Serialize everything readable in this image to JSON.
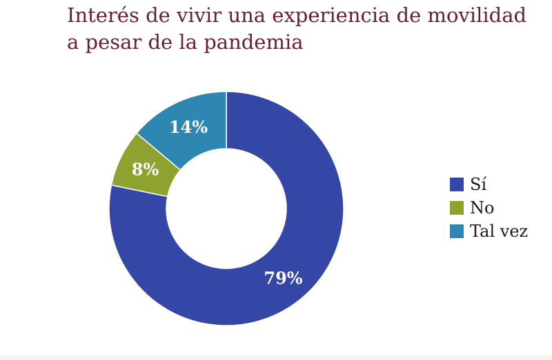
{
  "chart_data": {
    "type": "pie",
    "variant": "donut",
    "title": "Interés de vivir una experiencia de movilidad a pesar de la pandemia",
    "categories": [
      "Sí",
      "No",
      "Tal vez"
    ],
    "values": [
      79,
      8,
      14
    ],
    "data_labels": [
      "79%",
      "8%",
      "14%"
    ],
    "colors": [
      "#3446a6",
      "#8ea22f",
      "#2e87b0"
    ],
    "legend_position": "right"
  },
  "colors": {
    "title": "#6a1f2b",
    "label_text": "#ffffff",
    "legend_text": "#1a1a1a"
  }
}
